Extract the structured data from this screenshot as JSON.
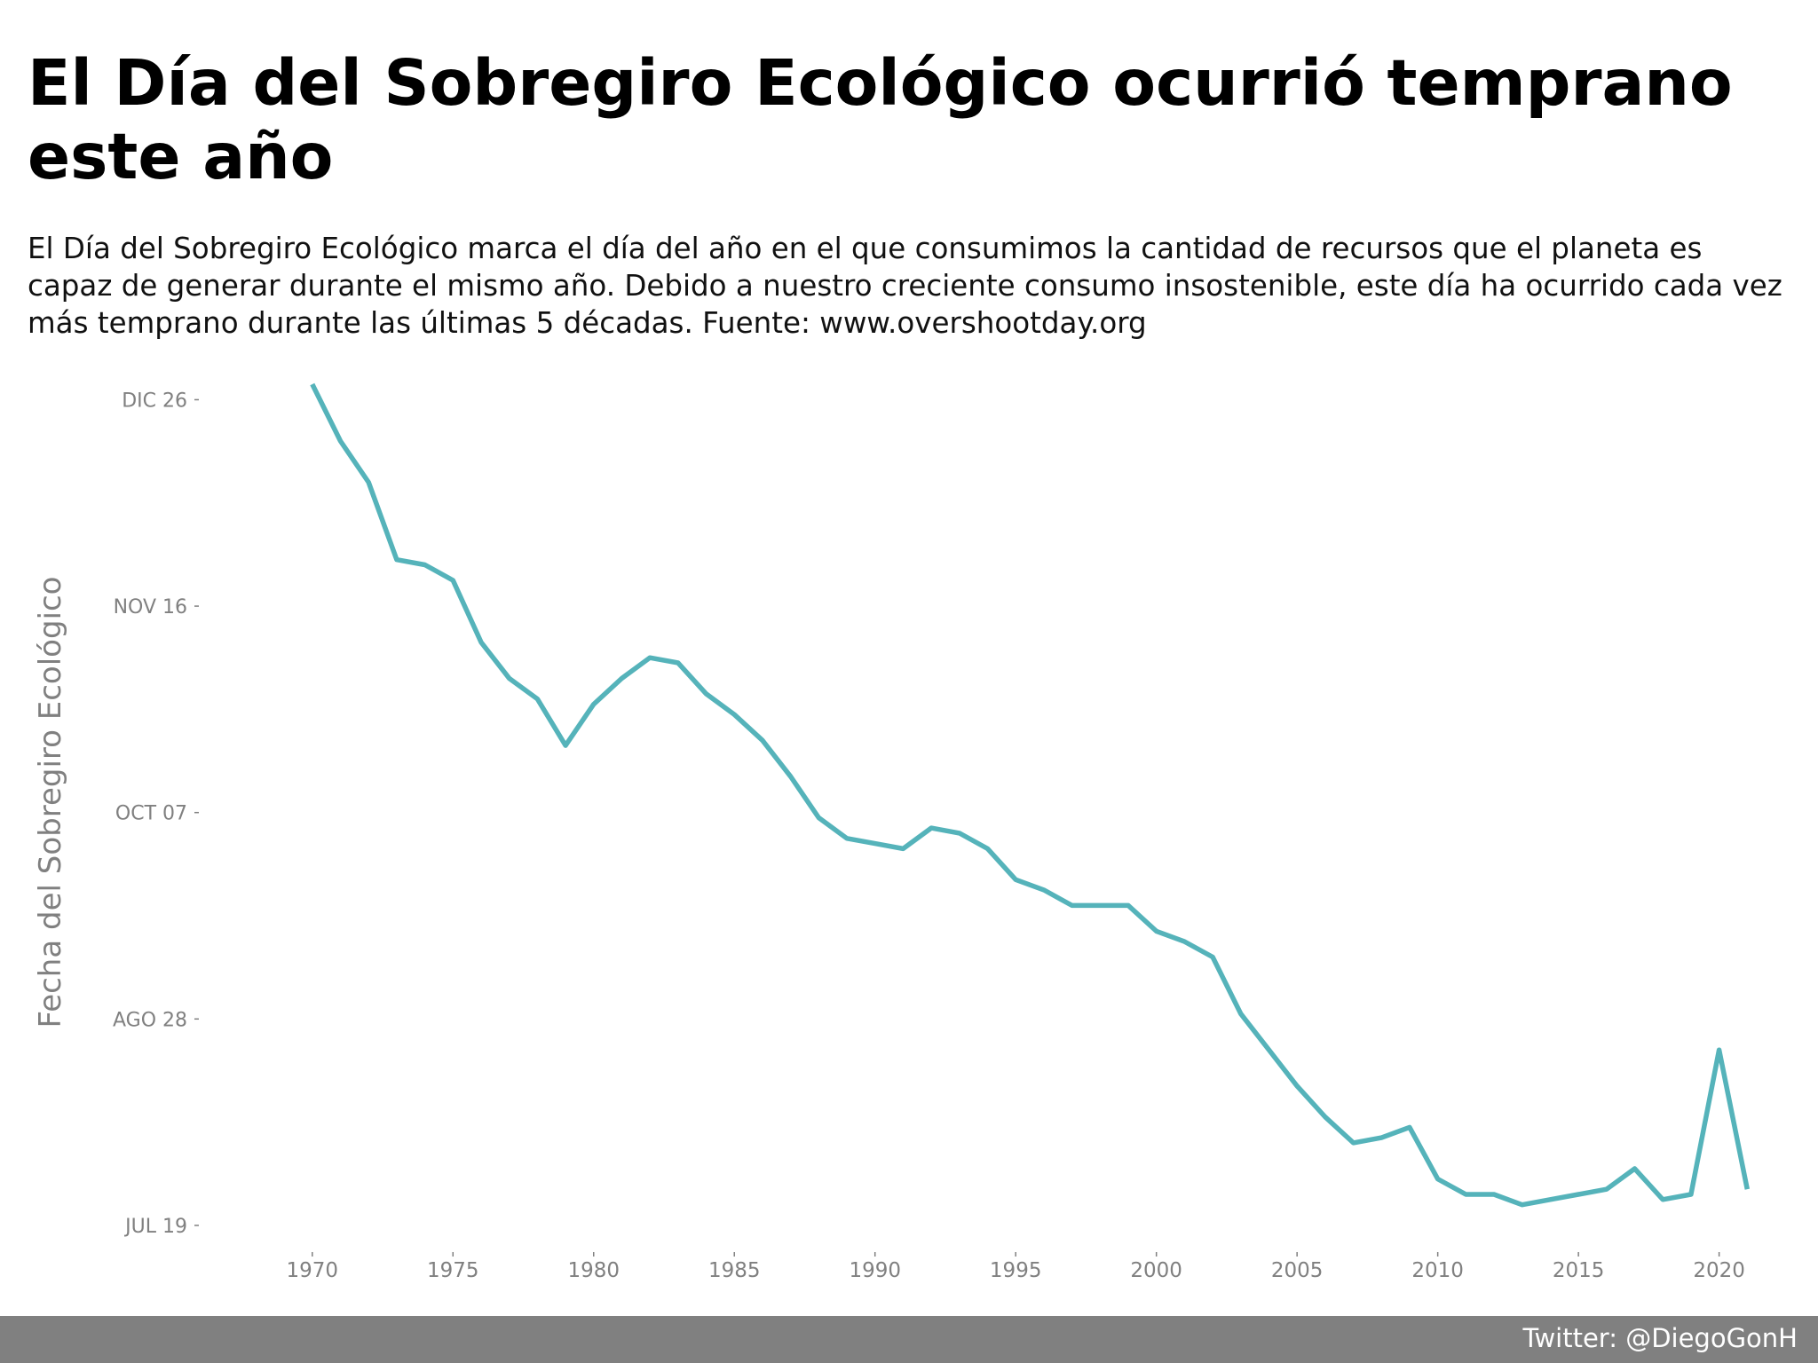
{
  "title": "El Día del Sobregiro Ecológico ocurrió temprano este año",
  "subtitle": "El Día del Sobregiro Ecológico marca el día del año en el que consumimos la cantidad de recursos que el planeta es capaz de generar durante el mismo año. Debido a nuestro creciente consumo insostenible, este día ha ocurrido cada vez más temprano durante las últimas 5 décadas. Fuente: www.overshootday.org",
  "footer": {
    "credit": "Twitter: @DiegoGonH"
  },
  "colors": {
    "line": "#55b3ba",
    "axis_text": "#808080",
    "footer_bg": "#808080"
  },
  "chart_data": {
    "type": "line",
    "title": "El Día del Sobregiro Ecológico ocurrió temprano este año",
    "xlabel": "",
    "ylabel": "Fecha del Sobregiro Ecológico",
    "xlim": [
      1966,
      2022
    ],
    "ylim": [
      "JUL 14",
      "DIC 29"
    ],
    "grid": false,
    "x_ticks": [
      1970,
      1975,
      1980,
      1985,
      1990,
      1995,
      2000,
      2005,
      2010,
      2015,
      2020
    ],
    "y_ticks": [
      "JUL 19",
      "AGO 28",
      "OCT 07",
      "NOV 16",
      "DIC 26"
    ],
    "series": [
      {
        "x": [
          1970,
          1971,
          1972,
          1973,
          1974,
          1975,
          1976,
          1977,
          1978,
          1979,
          1980,
          1981,
          1982,
          1983,
          1984,
          1985,
          1986,
          1987,
          1988,
          1989,
          1990,
          1991,
          1992,
          1993,
          1994,
          1995,
          1996,
          1997,
          1998,
          1999,
          2000,
          2001,
          2002,
          2003,
          2004,
          2005,
          2006,
          2007,
          2008,
          2009,
          2010,
          2011,
          2012,
          2013,
          2014,
          2015,
          2016,
          2017,
          2018,
          2019,
          2020,
          2021
        ],
        "y": [
          "DIC 29",
          "DIC 18",
          "DIC 10",
          "NOV 25",
          "NOV 24",
          "NOV 21",
          "NOV 09",
          "NOV 02",
          "OCT 29",
          "OCT 20",
          "OCT 28",
          "NOV 02",
          "NOV 06",
          "NOV 05",
          "OCT 30",
          "OCT 26",
          "OCT 21",
          "OCT 14",
          "OCT 06",
          "OCT 02",
          "OCT 01",
          "SEP 30",
          "OCT 04",
          "OCT 03",
          "SEP 30",
          "SEP 24",
          "SEP 22",
          "SEP 19",
          "SEP 19",
          "SEP 19",
          "SEP 14",
          "SEP 12",
          "SEP 09",
          "AGO 29",
          "AGO 22",
          "AGO 15",
          "AGO 09",
          "AGO 04",
          "AGO 05",
          "AGO 07",
          "JUL 28",
          "JUL 25",
          "JUL 25",
          "JUL 23",
          "JUL 24",
          "JUL 25",
          "JUL 26",
          "JUL 30",
          "JUL 24",
          "JUL 25",
          "AGO 22",
          "JUL 26"
        ]
      }
    ]
  }
}
